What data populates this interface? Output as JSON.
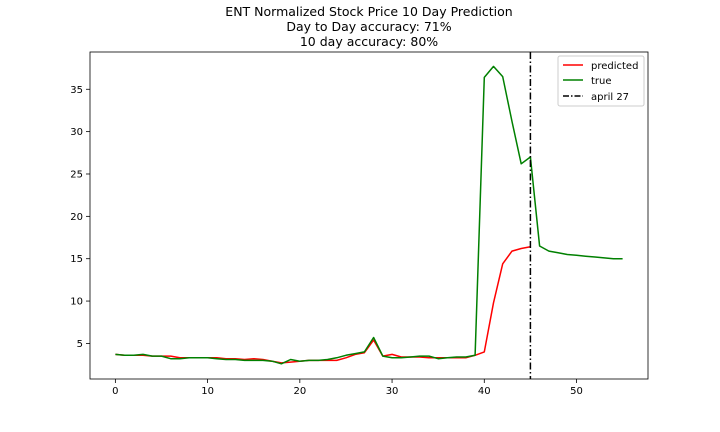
{
  "chart_data": {
    "type": "line",
    "title_lines": [
      "ENT Normalized Stock Price 10 Day Prediction",
      "Day to Day accuracy: 71%",
      "10 day accuracy: 80%"
    ],
    "xlabel": "",
    "ylabel": "",
    "xlim": [
      -2.75,
      57.75
    ],
    "ylim": [
      0.8,
      39.4
    ],
    "x_ticks": [
      0,
      10,
      20,
      30,
      40,
      50
    ],
    "y_ticks": [
      5,
      10,
      15,
      20,
      25,
      30,
      35
    ],
    "grid": false,
    "legend_position": "top-right",
    "series": [
      {
        "name": "predicted",
        "color": "#ff0000",
        "x": [
          0,
          1,
          2,
          3,
          4,
          5,
          6,
          7,
          8,
          9,
          10,
          11,
          12,
          13,
          14,
          15,
          16,
          17,
          18,
          19,
          20,
          21,
          22,
          23,
          24,
          25,
          26,
          27,
          28,
          29,
          30,
          31,
          32,
          33,
          34,
          35,
          36,
          37,
          38,
          39,
          40,
          41,
          42,
          43,
          44,
          45
        ],
        "y": [
          3.7,
          3.6,
          3.6,
          3.6,
          3.5,
          3.5,
          3.5,
          3.3,
          3.3,
          3.3,
          3.3,
          3.3,
          3.2,
          3.2,
          3.1,
          3.2,
          3.1,
          2.9,
          2.7,
          2.8,
          2.9,
          3.0,
          3.0,
          3.0,
          3.0,
          3.3,
          3.7,
          3.9,
          5.4,
          3.5,
          3.7,
          3.4,
          3.4,
          3.4,
          3.3,
          3.3,
          3.3,
          3.3,
          3.3,
          3.6,
          4.0,
          9.8,
          14.4,
          15.9,
          16.2,
          16.4
        ]
      },
      {
        "name": "true",
        "color": "#008000",
        "x": [
          0,
          1,
          2,
          3,
          4,
          5,
          6,
          7,
          8,
          9,
          10,
          11,
          12,
          13,
          14,
          15,
          16,
          17,
          18,
          19,
          20,
          21,
          22,
          23,
          24,
          25,
          26,
          27,
          28,
          29,
          30,
          31,
          32,
          33,
          34,
          35,
          36,
          37,
          38,
          39,
          40,
          41,
          42,
          43,
          44,
          45,
          46,
          47,
          48,
          49,
          50,
          51,
          52,
          53,
          54,
          55
        ],
        "y": [
          3.7,
          3.6,
          3.6,
          3.7,
          3.5,
          3.5,
          3.2,
          3.2,
          3.3,
          3.3,
          3.3,
          3.2,
          3.1,
          3.1,
          3.0,
          3.0,
          3.0,
          2.9,
          2.6,
          3.1,
          2.9,
          3.0,
          3.0,
          3.1,
          3.3,
          3.6,
          3.8,
          4.0,
          5.7,
          3.5,
          3.3,
          3.3,
          3.4,
          3.5,
          3.5,
          3.2,
          3.3,
          3.4,
          3.4,
          3.6,
          36.4,
          37.7,
          36.5,
          31.2,
          26.2,
          27.0,
          16.5,
          15.9,
          15.7,
          15.5,
          15.4,
          15.3,
          15.2,
          15.1,
          15.0,
          15.0
        ]
      }
    ],
    "vline": {
      "name": "april 27",
      "x": 45,
      "color": "#000000"
    }
  }
}
